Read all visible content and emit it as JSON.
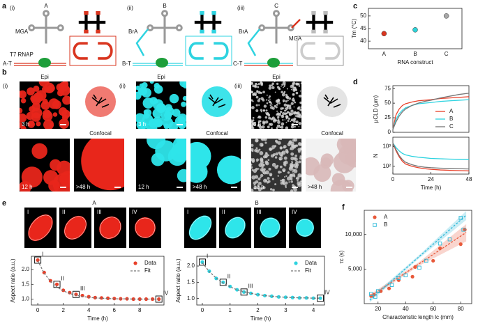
{
  "panel_labels": [
    "a",
    "b",
    "c",
    "d",
    "e",
    "f"
  ],
  "panel_a": {
    "groups": [
      {
        "roman": "(i)",
        "construct": "A",
        "ligand": "MGA",
        "polymerase": "T7 RNAP",
        "template": "A-T"
      },
      {
        "roman": "(ii)",
        "construct": "B",
        "ligand": "BrA",
        "template": "B-T"
      },
      {
        "roman": "(iii)",
        "construct": "C",
        "ligand": "BrA",
        "ligand2": "MGA",
        "template": "C-T"
      }
    ]
  },
  "panel_b": {
    "groups": [
      {
        "roman": "(i)"
      },
      {
        "roman": "(ii)"
      },
      {
        "roman": "(iii)"
      }
    ],
    "epi": "Epi",
    "confocal": "Confocal",
    "t3": "3 h",
    "t12": "12 h",
    "t48": ">48 h"
  },
  "panel_e": {
    "groups": [
      {
        "title": "A",
        "frames": [
          "I",
          "II",
          "III",
          "IV"
        ]
      },
      {
        "title": "B",
        "frames": [
          "I",
          "II",
          "III",
          "IV"
        ]
      }
    ]
  },
  "chart_data": [
    {
      "type": "scatter",
      "categories": [
        "A",
        "B",
        "C"
      ],
      "values": [
        43,
        44.5,
        50
      ],
      "colors": [
        "#d9351f",
        "#2ed3d8",
        "#a8a8a8"
      ],
      "ylim": [
        37,
        53
      ],
      "yticks": [
        40,
        45,
        50
      ],
      "ylabel": "Tm (°C)",
      "xlabel": "RNA construct"
    },
    {
      "type": "line",
      "x": [
        0,
        2,
        4,
        6,
        8,
        12,
        16,
        20,
        24,
        30,
        36,
        42,
        48
      ],
      "xlim": [
        0,
        48
      ],
      "ylim": [
        0,
        80
      ],
      "yticks": [
        0,
        25,
        50,
        75
      ],
      "ylabel": "μCLD (μm)",
      "legend": "lower right",
      "series": [
        {
          "name": "A",
          "color": "#e8402a",
          "values": [
            5,
            30,
            40,
            46,
            49,
            52,
            54,
            55,
            56,
            58,
            59,
            60,
            61
          ]
        },
        {
          "name": "B",
          "color": "#2ed3e0",
          "values": [
            5,
            22,
            32,
            38,
            42,
            46,
            49,
            50,
            51,
            53,
            54,
            55,
            56
          ]
        },
        {
          "name": "C",
          "color": "#777777",
          "values": [
            5,
            18,
            28,
            35,
            40,
            46,
            50,
            53,
            55,
            59,
            62,
            65,
            67
          ]
        }
      ]
    },
    {
      "type": "line",
      "x": [
        0,
        2,
        4,
        6,
        8,
        12,
        16,
        20,
        24,
        30,
        36,
        42,
        48
      ],
      "xlim": [
        0,
        48
      ],
      "xticks": [
        0,
        24,
        48
      ],
      "xlabel": "Time (h)",
      "ylog": true,
      "ylim": [
        40,
        3000
      ],
      "yticks": [
        {
          "value": 100,
          "label": "10²"
        },
        {
          "value": 1000,
          "label": "10³"
        }
      ],
      "ylabel": "N",
      "series": [
        {
          "color": "#e8402a",
          "values": [
            1500,
            600,
            300,
            180,
            130,
            100,
            85,
            75,
            70,
            65,
            62,
            60,
            58
          ]
        },
        {
          "color": "#2ed3e0",
          "values": [
            1500,
            900,
            600,
            450,
            380,
            320,
            290,
            270,
            250,
            240,
            230,
            225,
            220
          ]
        },
        {
          "color": "#777777",
          "values": [
            1500,
            700,
            350,
            220,
            160,
            120,
            100,
            90,
            85,
            80,
            77,
            75,
            73
          ]
        }
      ]
    },
    {
      "type": "line",
      "x": [
        0,
        0.5,
        1,
        1.5,
        2,
        2.5,
        3,
        3.5,
        4,
        4.5,
        5,
        5.5,
        6,
        6.5,
        7,
        7.5,
        8,
        8.5,
        9,
        9.5
      ],
      "xlim": [
        -0.5,
        9.9
      ],
      "xticks": [
        0,
        2,
        4,
        6,
        8
      ],
      "ylim": [
        0.8,
        2.45
      ],
      "yticks": [
        {
          "value": 1,
          "label": "1.0"
        },
        1.5,
        {
          "value": 2,
          "label": "2.0"
        }
      ],
      "xlabel": "Time (h)",
      "ylabel": "Aspect ratio (a.u.)",
      "legend": "upper right",
      "series": [
        {
          "name": "Data",
          "color": "#e8402a",
          "marker": "circle",
          "values": [
            2.32,
            1.9,
            1.62,
            1.5,
            1.3,
            1.22,
            1.16,
            1.12,
            1.08,
            1.05,
            1.04,
            1.03,
            1.02,
            1.01,
            1.01,
            1.0,
            1.0,
            1.0,
            1.0,
            1.0
          ],
          "point_labels": [
            "I",
            null,
            null,
            "II",
            null,
            null,
            "III",
            null,
            null,
            null,
            null,
            null,
            null,
            null,
            null,
            null,
            null,
            null,
            null,
            "IV"
          ]
        },
        {
          "name": "Fit",
          "color": "#777777",
          "dash": true,
          "values": [
            2.3,
            1.88,
            1.6,
            1.41,
            1.28,
            1.19,
            1.13,
            1.09,
            1.06,
            1.04,
            1.03,
            1.02,
            1.01,
            1.01,
            1.01,
            1.0,
            1.0,
            1.0,
            1.0,
            1.0
          ]
        }
      ]
    },
    {
      "type": "line",
      "x": [
        0,
        0.25,
        0.5,
        0.75,
        1,
        1.25,
        1.5,
        1.75,
        2,
        2.25,
        2.5,
        2.75,
        3,
        3.25,
        3.5,
        3.75,
        4,
        4.25
      ],
      "xlim": [
        -0.2,
        4.4
      ],
      "xticks": [
        0,
        1,
        2,
        3,
        4
      ],
      "ylim": [
        0.8,
        2.3
      ],
      "yticks": [
        {
          "value": 1,
          "label": "1.0"
        },
        1.5,
        {
          "value": 2,
          "label": "2.0"
        }
      ],
      "xlabel": "Time (h)",
      "ylabel": "Aspect ratio (a.u.)",
      "legend": "upper right",
      "series": [
        {
          "name": "Data",
          "color": "#2ed3e0",
          "marker": "circle",
          "values": [
            2.12,
            1.84,
            1.62,
            1.5,
            1.37,
            1.27,
            1.2,
            1.16,
            1.12,
            1.09,
            1.07,
            1.05,
            1.04,
            1.03,
            1.02,
            1.02,
            1.01,
            1.01
          ],
          "point_labels": [
            "I",
            null,
            null,
            "II",
            null,
            null,
            "III",
            null,
            null,
            null,
            null,
            null,
            null,
            null,
            null,
            null,
            null,
            "IV"
          ]
        },
        {
          "name": "Fit",
          "color": "#777777",
          "dash": true,
          "values": [
            2.1,
            1.83,
            1.63,
            1.48,
            1.36,
            1.27,
            1.21,
            1.16,
            1.12,
            1.09,
            1.07,
            1.05,
            1.04,
            1.03,
            1.02,
            1.02,
            1.01,
            1.01
          ]
        }
      ]
    },
    {
      "type": "scatter",
      "xlim": [
        10,
        88
      ],
      "xticks": [
        20,
        40,
        60,
        80
      ],
      "ylim": [
        0,
        13500
      ],
      "yticks": [
        {
          "value": 5000,
          "label": "5,000"
        },
        {
          "value": 10000,
          "label": "10,000"
        }
      ],
      "xlabel": "Characteristic length lc (mm)",
      "ylabel": "τc (s)",
      "legend": "upper left",
      "series": [
        {
          "color": "#e8593a",
          "dash": true,
          "x": [
            14,
            50,
            84
          ],
          "values": [
            1000,
            5780,
            10300
          ],
          "band_lower": [
            700,
            5500,
            9000
          ],
          "band_upper": [
            1300,
            6050,
            11500
          ]
        },
        {
          "color": "#2ab8d8",
          "dash": true,
          "x": [
            14,
            50,
            84
          ],
          "values": [
            500,
            6830,
            12800
          ],
          "band_lower": [
            200,
            6600,
            12100
          ],
          "band_upper": [
            800,
            7050,
            13400
          ]
        },
        {
          "name": "A",
          "color": "#e8593a",
          "marker": "circle",
          "x": [
            15,
            17,
            22,
            28,
            35,
            45,
            47,
            60,
            65,
            80,
            83
          ],
          "values": [
            1100,
            1300,
            1800,
            2200,
            3400,
            3900,
            5300,
            6200,
            8000,
            8600,
            10700
          ]
        },
        {
          "name": "B",
          "color": "#2ab8d8",
          "marker": "square",
          "x": [
            15,
            18,
            20,
            30,
            35,
            40,
            50,
            55,
            65,
            72,
            80,
            82
          ],
          "values": [
            1400,
            1000,
            1800,
            2700,
            3700,
            4100,
            5200,
            6200,
            8700,
            9300,
            12400,
            10700
          ]
        }
      ]
    }
  ]
}
